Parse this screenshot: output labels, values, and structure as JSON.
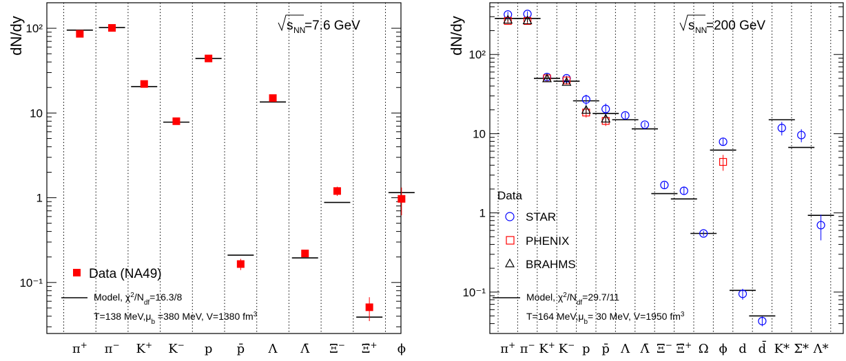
{
  "chart_data": [
    {
      "type": "scatter",
      "ylabel": "dN/dy",
      "energy_label": "√sNN=7.6 GeV",
      "energy_value": "=7.6 GeV",
      "ylog": true,
      "ylim": [
        0.025,
        200
      ],
      "yticks": [
        {
          "v": 100,
          "l": "10²"
        },
        {
          "v": 10,
          "l": "10"
        },
        {
          "v": 1,
          "l": "1"
        },
        {
          "v": 0.1,
          "l": "10⁻¹"
        }
      ],
      "categories": [
        {
          "b": "π",
          "s": "+"
        },
        {
          "b": "π",
          "s": "−"
        },
        {
          "b": "K",
          "s": "+"
        },
        {
          "b": "K",
          "s": "−"
        },
        {
          "b": "p",
          "s": ""
        },
        {
          "b": "p̄",
          "s": ""
        },
        {
          "b": "Λ",
          "s": ""
        },
        {
          "b": "Λ̄",
          "s": ""
        },
        {
          "b": "Ξ",
          "s": "−"
        },
        {
          "b": "Ξ̄",
          "s": "+"
        },
        {
          "b": "ϕ",
          "s": ""
        }
      ],
      "model": {
        "name": "Model",
        "values": [
          95,
          102,
          20.5,
          7.8,
          44,
          0.21,
          13.5,
          0.195,
          0.88,
          0.039,
          1.15
        ]
      },
      "series": [
        {
          "name": "Data (NA49)",
          "marker": "filled-square",
          "color": "#ff0000",
          "values": [
            86,
            101,
            22,
            8.0,
            44,
            0.165,
            15,
            0.22,
            1.2,
            0.051,
            0.97
          ],
          "errors": [
            3,
            4,
            1,
            0.4,
            2,
            0.025,
            1,
            0.02,
            0.15,
            0.016,
            0.35
          ]
        }
      ],
      "legend": {
        "data_label": "Data (NA49)",
        "model_line1": "Model, χ²/Ndf=16.3/8",
        "model_line2": "T=138 MeV,μb =380 MeV, V=1380 fm³"
      }
    },
    {
      "type": "scatter",
      "ylabel": "dN/dy",
      "energy_label": "√sNN=200 GeV",
      "energy_value": "=200 GeV",
      "ylog": true,
      "ylim": [
        0.03,
        450
      ],
      "yticks": [
        {
          "v": 100,
          "l": "10²"
        },
        {
          "v": 10,
          "l": "10"
        },
        {
          "v": 1,
          "l": "1"
        },
        {
          "v": 0.1,
          "l": "10⁻¹"
        }
      ],
      "categories": [
        {
          "b": "π",
          "s": "+"
        },
        {
          "b": "π",
          "s": "−"
        },
        {
          "b": "K",
          "s": "+"
        },
        {
          "b": "K",
          "s": "−"
        },
        {
          "b": "p",
          "s": ""
        },
        {
          "b": "p̄",
          "s": ""
        },
        {
          "b": "Λ",
          "s": ""
        },
        {
          "b": "Λ̄",
          "s": ""
        },
        {
          "b": "Ξ",
          "s": "−"
        },
        {
          "b": "Ξ̄",
          "s": "+"
        },
        {
          "b": "Ω",
          "s": ""
        },
        {
          "b": "ϕ",
          "s": ""
        },
        {
          "b": "d",
          "s": ""
        },
        {
          "b": "d̄",
          "s": ""
        },
        {
          "b": "K*",
          "s": ""
        },
        {
          "b": "Σ*",
          "s": ""
        },
        {
          "b": "Λ*",
          "s": ""
        }
      ],
      "model": {
        "name": "Model",
        "values": [
          285,
          285,
          50,
          46,
          26,
          18,
          15,
          11.5,
          1.75,
          1.5,
          0.55,
          6.2,
          0.105,
          0.05,
          15,
          6.7,
          0.93
        ]
      },
      "series": [
        {
          "name": "STAR",
          "marker": "open-circle",
          "color": "#0000ff",
          "values": [
            320,
            325,
            52,
            50,
            27,
            20.5,
            17,
            13,
            2.25,
            1.9,
            0.55,
            7.9,
            0.095,
            0.043,
            11.8,
            9.6,
            0.7
          ],
          "errors": [
            25,
            25,
            4,
            4,
            4,
            3.5,
            1.5,
            1,
            0.2,
            0.2,
            0.04,
            0.8,
            0.015,
            0.006,
            2.3,
            1.8,
            0.25
          ]
        },
        {
          "name": "PHENIX",
          "marker": "open-square",
          "color": "#ff0000",
          "values": [
            265,
            265,
            50,
            47,
            18.5,
            14.5,
            null,
            null,
            null,
            null,
            null,
            4.4,
            null,
            null,
            null,
            null,
            null
          ],
          "errors": [
            20,
            20,
            4,
            4,
            2.5,
            2,
            null,
            null,
            null,
            null,
            null,
            1,
            null,
            null,
            null,
            null,
            null
          ]
        },
        {
          "name": "BRAHMS",
          "marker": "open-triangle",
          "color": "#000000",
          "values": [
            275,
            270,
            50,
            45,
            20,
            15.5,
            null,
            null,
            null,
            null,
            null,
            null,
            null,
            null,
            null,
            null,
            null
          ],
          "errors": [
            15,
            15,
            3,
            3,
            2,
            1.5,
            null,
            null,
            null,
            null,
            null,
            null,
            null,
            null,
            null,
            null,
            null
          ]
        }
      ],
      "legend": {
        "title": "Data",
        "star": "STAR",
        "phenix": "PHENIX",
        "brahms": "BRAHMS",
        "model_line1": "Model, χ²/Ndf=29.7/11",
        "model_line2": "T=164 MeV,μb= 30 MeV, V=1950 fm³"
      }
    }
  ]
}
